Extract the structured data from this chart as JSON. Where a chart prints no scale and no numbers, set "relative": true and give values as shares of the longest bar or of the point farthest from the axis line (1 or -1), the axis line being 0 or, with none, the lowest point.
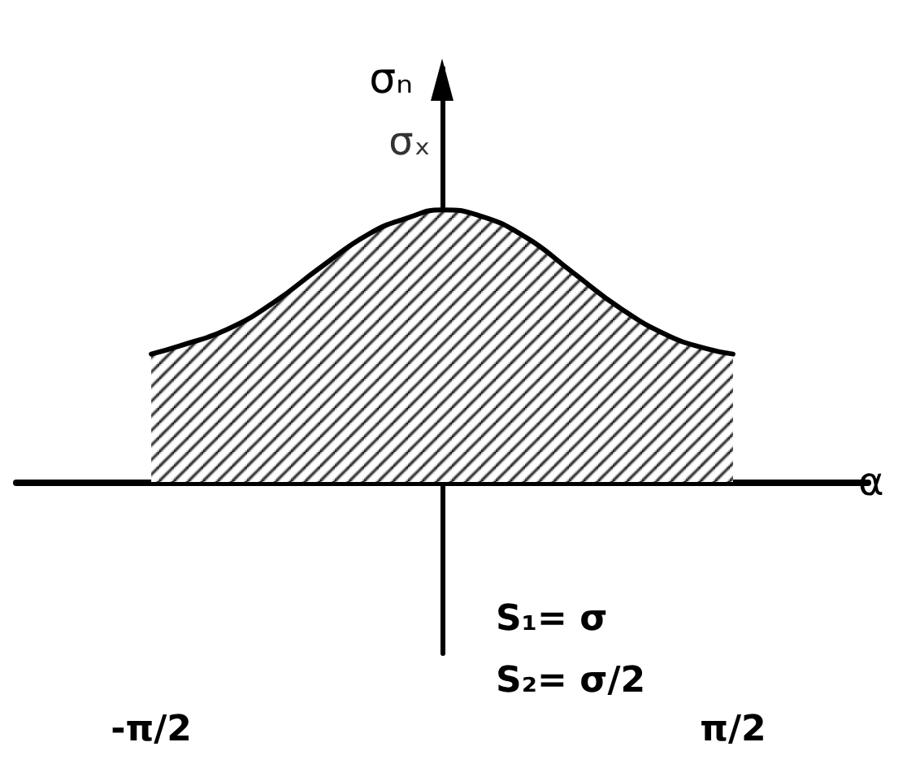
{
  "chart_data": {
    "type": "area",
    "relative": true,
    "xlabel": "α",
    "ylabel": "σₙ",
    "x": [
      -1.571,
      -1.418,
      -1.163,
      -0.909,
      -0.654,
      -0.399,
      -0.187,
      0,
      0.195,
      0.45,
      0.705,
      0.959,
      1.214,
      1.426,
      1.571
    ],
    "values": [
      0.47,
      0.5,
      0.56,
      0.66,
      0.79,
      0.91,
      0.97,
      1,
      0.98,
      0.9,
      0.77,
      0.64,
      0.54,
      0.49,
      0.47
    ],
    "color": "#000000",
    "xlim": [
      -2.3,
      2.3
    ],
    "xticks": [
      {
        "value": -1.571,
        "label": "-π/2"
      },
      {
        "value": 1.571,
        "label": "π/2"
      }
    ],
    "annotations": [
      {
        "text": "σₓ",
        "x": 0,
        "y": 1
      },
      "S₁= σ",
      "S₂= σ/2"
    ],
    "grid": false
  }
}
